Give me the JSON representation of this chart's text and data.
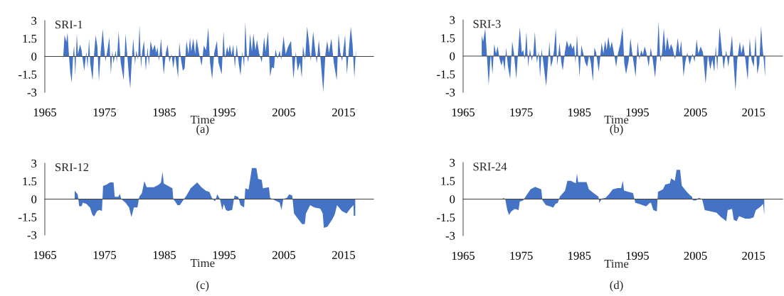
{
  "chart_data": [
    {
      "type": "area",
      "title": "SRI-1",
      "xlabel": "Time",
      "annotations": [
        "(a)"
      ],
      "color": "#4472c4",
      "xlim": [
        1965,
        2020
      ],
      "xticks": [
        1965,
        1975,
        1985,
        1995,
        2005,
        2015
      ],
      "ylim": [
        -3,
        3
      ],
      "yticks": [
        -3,
        -1.5,
        0,
        1.5,
        3
      ],
      "x": [
        1968.05,
        1968.3,
        1968.6,
        1968.8,
        1969.05,
        1969.25,
        1969.5,
        1969.75,
        1969.9,
        1970.1,
        1970.35,
        1970.55,
        1970.9,
        1971.15,
        1971.35,
        1971.6,
        1971.95,
        1972.15,
        1972.4,
        1972.6,
        1973.0,
        1973.25,
        1973.5,
        1973.8,
        1974.05,
        1974.35,
        1974.7,
        1974.9,
        1975.15,
        1975.5,
        1975.8,
        1976.05,
        1976.3,
        1976.5,
        1976.85,
        1977.05,
        1977.35,
        1977.7,
        1978.2,
        1978.5,
        1978.8,
        1979.05,
        1979.3,
        1979.5,
        1979.8,
        1980.1,
        1980.3,
        1980.6,
        1980.85,
        1981.1,
        1981.3,
        1981.6,
        1981.9,
        1982.2,
        1982.4,
        1982.7,
        1983.05,
        1983.4,
        1983.65,
        1983.85,
        1984.1,
        1984.45,
        1984.7,
        1984.9,
        1985.25,
        1985.55,
        1985.85,
        1986.2,
        1986.5,
        1986.8,
        1987.3,
        1987.5,
        1987.8,
        1988.1,
        1988.4,
        1988.7,
        1989.05,
        1989.3,
        1989.5,
        1989.85,
        1990.15,
        1990.4,
        1990.8,
        1991.25,
        1991.6,
        1992.0,
        1992.35,
        1992.65,
        1993.0,
        1993.35,
        1993.8,
        1994.05,
        1994.6,
        1994.9,
        1995.15,
        1995.5,
        1995.75,
        1995.95,
        1996.25,
        1996.55,
        1996.8,
        1997.1,
        1997.45,
        1997.75,
        1998.05,
        1998.35,
        1998.55,
        1998.8,
        1999.05,
        1999.35,
        1999.65,
        1999.9,
        2000.25,
        2000.5,
        2000.85,
        2001.3,
        2001.7,
        2001.95,
        2002.35,
        2002.7,
        2003.0,
        2003.35,
        2003.6,
        2003.95,
        2004.3,
        2004.55,
        2004.95,
        2005.3,
        2005.7,
        2006.2,
        2006.6,
        2007.0,
        2007.3,
        2007.7,
        2008.0,
        2008.2,
        2008.55,
        2008.9,
        2009.2,
        2009.5,
        2009.9,
        2010.25,
        2010.5,
        2010.85,
        2011.15,
        2011.6,
        2011.95,
        2012.25,
        2012.55,
        2012.95,
        2013.35,
        2013.85,
        2014.15,
        2014.45,
        2014.75,
        2015.25,
        2015.55,
        2015.9,
        2016.2,
        2016.5,
        2016.8,
        2017.05
      ],
      "values": [
        -0.3,
        1.8,
        1.2,
        2.0,
        0,
        -1.3,
        -2.2,
        0.2,
        0.9,
        -1.6,
        1.9,
        0.2,
        1.0,
        0.5,
        -0.3,
        -1.2,
        0.4,
        -1.0,
        1.5,
        -0.6,
        -2.0,
        0.2,
        1.8,
        0.8,
        -2.1,
        0.4,
        2.3,
        0.9,
        -0.4,
        0.6,
        1.6,
        -1.5,
        0.5,
        -0.6,
        0.5,
        -0.5,
        2.1,
        -0.5,
        -2.0,
        1.9,
        0.1,
        -1.5,
        -2.7,
        -0.8,
        1.5,
        -0.7,
        0.5,
        -0.3,
        2.6,
        -1.0,
        0.4,
        1.3,
        -1.2,
        0.8,
        -0.8,
        1.3,
        0.5,
        1.0,
        0.3,
        0.8,
        -0.4,
        1.5,
        -0.3,
        -1.5,
        0.3,
        1.0,
        -0.5,
        0.2,
        -1.0,
        0.2,
        -1.8,
        1.2,
        -0.3,
        -1.2,
        -1.0,
        1.3,
        0.2,
        1.6,
        0.4,
        1.5,
        0.2,
        1.5,
        0.3,
        -0.8,
        0.9,
        0.5,
        2.4,
        -0.5,
        -1.9,
        0.3,
        1.3,
        -0.5,
        -1.5,
        2.1,
        -0.2,
        0.8,
        0.3,
        1.0,
        0.1,
        1.0,
        -1.0,
        1.0,
        -0.6,
        -1.6,
        0.4,
        -0.9,
        2.9,
        0.2,
        -0.5,
        1.9,
        0.4,
        1.9,
        0.5,
        1.4,
        0.3,
        -0.5,
        1.6,
        0.4,
        2.1,
        -1.7,
        -0.9,
        -1.0,
        0.6,
        -0.2,
        0.5,
        -0.3,
        1.7,
        0.2,
        0.8,
        1.3,
        -1.9,
        0.4,
        -1.2,
        -0.5,
        -1.8,
        0.9,
        -0.3,
        2.5,
        1.2,
        -0.4,
        2.1,
        0.5,
        -0.6,
        1.4,
        -0.3,
        -3.0,
        0.2,
        1.3,
        0.3,
        1.5,
        -0.5,
        -2.0,
        1.9,
        0.3,
        -0.4,
        1.8,
        -1.5,
        0.7,
        2.5,
        1.0,
        -1.8,
        0.6
      ]
    },
    {
      "type": "area",
      "title": "SRI-3",
      "xlabel": "Time",
      "annotations": [
        "(b)"
      ],
      "color": "#4472c4",
      "xlim": [
        1965,
        2020
      ],
      "xticks": [
        1965,
        1975,
        1985,
        1995,
        2005,
        2015
      ],
      "ylim": [
        -3,
        3
      ],
      "yticks": [
        -3,
        -1.5,
        0,
        1.5,
        3
      ],
      "x": [
        1968.2,
        1968.45,
        1968.8,
        1969.1,
        1969.4,
        1969.75,
        1970.05,
        1970.35,
        1970.65,
        1970.95,
        1971.25,
        1971.6,
        1971.85,
        1972.15,
        1972.4,
        1972.7,
        1973.1,
        1973.45,
        1973.75,
        1974.15,
        1974.45,
        1974.75,
        1975.1,
        1975.35,
        1975.6,
        1975.9,
        1976.2,
        1976.5,
        1976.8,
        1977.1,
        1977.35,
        1977.7,
        1978.0,
        1978.25,
        1978.5,
        1978.8,
        1979.3,
        1979.55,
        1979.85,
        1980.1,
        1980.4,
        1980.65,
        1980.95,
        1981.2,
        1981.6,
        1981.9,
        1982.15,
        1982.5,
        1982.85,
        1983.2,
        1983.5,
        1983.8,
        1984.1,
        1984.35,
        1984.6,
        1984.8,
        1985.05,
        1985.35,
        1985.65,
        1986.0,
        1986.35,
        1986.7,
        1987.0,
        1987.35,
        1987.6,
        1987.9,
        1988.35,
        1988.85,
        1989.15,
        1989.45,
        1989.7,
        1990.0,
        1990.3,
        1990.6,
        1990.95,
        1991.35,
        1991.65,
        1992.05,
        1992.45,
        1992.75,
        1993.05,
        1993.5,
        1993.8,
        1994.1,
        1994.7,
        1995.05,
        1995.35,
        1995.65,
        1995.95,
        1996.25,
        1996.55,
        1996.95,
        1997.3,
        1997.65,
        1998.05,
        1998.4,
        1998.65,
        1998.95,
        1999.25,
        1999.55,
        1999.85,
        2000.15,
        2000.5,
        2000.8,
        2001.1,
        2001.5,
        2001.95,
        2002.25,
        2002.55,
        2002.95,
        2003.25,
        2003.6,
        2004.0,
        2004.5,
        2004.85,
        2005.2,
        2005.5,
        2005.9,
        2006.3,
        2006.75,
        2007.15,
        2007.55,
        2007.9,
        2008.25,
        2008.5,
        2008.75,
        2009.15,
        2009.5,
        2009.85,
        2010.3,
        2010.65,
        2010.95,
        2011.3,
        2011.6,
        2011.9,
        2012.2,
        2012.65,
        2012.9,
        2013.25,
        2013.6,
        2014.0,
        2014.35,
        2014.65,
        2015.05,
        2015.35,
        2015.65,
        2016.0,
        2016.3,
        2016.5,
        2016.75,
        2017.0
      ],
      "values": [
        1.7,
        1.2,
        2.3,
        0,
        -2.4,
        0.2,
        -1.5,
        1.0,
        0.2,
        0.8,
        -0.2,
        -0.8,
        -0.3,
        -1.2,
        0.7,
        -0.8,
        -1.9,
        1.2,
        0.2,
        -1.9,
        0.3,
        2.4,
        0.3,
        0.5,
        -0.3,
        2.0,
        -0.9,
        0.6,
        -0.4,
        0.2,
        2.0,
        -0.6,
        0.4,
        -1.8,
        0.6,
        -0.5,
        -2.5,
        -1.0,
        1.2,
        -0.9,
        -0.4,
        0.5,
        2.3,
        -0.8,
        1.1,
        -0.5,
        -1.2,
        0.3,
        1.3,
        0.7,
        1.1,
        0.6,
        0.9,
        -0.6,
        1.8,
        0.1,
        -1.7,
        0.9,
        0.3,
        -0.5,
        -0.9,
        0.1,
        -0.6,
        -2.1,
        0.7,
        0.3,
        -1.3,
        1.1,
        0.2,
        1.3,
        0.5,
        1.6,
        0.6,
        1.2,
        0.3,
        -0.9,
        0.2,
        1.0,
        2.4,
        -0.6,
        -1.5,
        -0.4,
        1.5,
        0.3,
        -1.7,
        1.2,
        -0.3,
        0.5,
        0.1,
        0.8,
        0.3,
        -0.9,
        0.7,
        -0.3,
        -1.8,
        0.2,
        2.9,
        -0.5,
        0.3,
        2.3,
        0.4,
        1.6,
        0.5,
        1.0,
        0.6,
        -0.3,
        1.5,
        0.2,
        1.3,
        -1.7,
        -0.5,
        0.3,
        -0.7,
        0.2,
        -0.5,
        1.4,
        0.2,
        0.8,
        0.3,
        -2.3,
        0.1,
        -1.1,
        -0.3,
        -1.3,
        0.9,
        -1.2,
        2.4,
        0.7,
        -1.1,
        0.5,
        -0.9,
        0.2,
        1.7,
        -0.8,
        -2.9,
        -0.3,
        1.2,
        0.2,
        1.0,
        -0.3,
        -2.0,
        1.5,
        -0.3,
        -0.9,
        1.7,
        -1.5,
        -0.6,
        2.5,
        1.0,
        -0.3,
        -1.7
      ]
    },
    {
      "type": "area",
      "title": "SRI-12",
      "xlabel": "Time",
      "annotations": [
        "(c)"
      ],
      "color": "#4472c4",
      "xlim": [
        1965,
        2020
      ],
      "xticks": [
        1965,
        1975,
        1985,
        1995,
        2005,
        2015
      ],
      "ylim": [
        -3,
        3
      ],
      "yticks": [
        -3,
        -1.5,
        0,
        1.5,
        3
      ],
      "x": [
        1970.0,
        1970.5,
        1970.75,
        1971.15,
        1971.35,
        1971.95,
        1972.55,
        1972.95,
        1973.25,
        1973.75,
        1974.15,
        1974.55,
        1974.65,
        1974.75,
        1975.3,
        1975.9,
        1976.5,
        1976.7,
        1977.3,
        1977.55,
        1977.8,
        1978.5,
        1979.1,
        1979.5,
        1979.9,
        1980.5,
        1980.8,
        1981.25,
        1981.65,
        1982.05,
        1983.25,
        1984.05,
        1984.45,
        1984.7,
        1984.9,
        1985.65,
        1986.35,
        1986.5,
        1986.8,
        1987.2,
        1987.6,
        1988.7,
        1989.4,
        1990.5,
        1991.2,
        1991.95,
        1992.55,
        1992.95,
        1993.5,
        1993.85,
        1994.3,
        1994.7,
        1994.95,
        1995.3,
        1995.65,
        1996.35,
        1996.75,
        1997.35,
        1997.75,
        1998.35,
        1998.55,
        1999.1,
        1999.65,
        2000.4,
        2000.7,
        2001.3,
        2001.5,
        2002.5,
        2002.7,
        2003.5,
        2004.3,
        2004.6,
        2004.9,
        2005.5,
        2005.9,
        2006.4,
        2006.7,
        2007.3,
        2008.05,
        2008.5,
        2008.7,
        2009.4,
        2010.1,
        2011.1,
        2011.5,
        2011.7,
        2012.3,
        2013.1,
        2013.5,
        2013.9,
        2014.7,
        2015.5,
        2016.1,
        2016.65,
        2016.7,
        2016.95
      ],
      "values": [
        0.7,
        0.4,
        -0.6,
        -0.6,
        -0.3,
        -0.4,
        -0.7,
        -1.3,
        -1.45,
        -1.0,
        -0.9,
        -1.0,
        0,
        1.1,
        1.2,
        1.4,
        1.4,
        0.2,
        0.2,
        0.45,
        0.0,
        -0.3,
        -0.7,
        -1.5,
        -0.7,
        -0.7,
        0.2,
        0.5,
        1.5,
        1.0,
        1.0,
        1.2,
        1.4,
        2.3,
        1.3,
        1.1,
        0.9,
        0.0,
        -0.2,
        -0.5,
        -0.5,
        0.3,
        0.9,
        1.4,
        1.0,
        0.7,
        0.6,
        0.1,
        -0.2,
        0.4,
        0.0,
        -0.9,
        -0.4,
        -0.9,
        -1.0,
        -0.9,
        0.3,
        0.2,
        -0.5,
        -0.7,
        0.9,
        0.8,
        2.6,
        2.6,
        1.7,
        1.6,
        0.9,
        1.0,
        0.1,
        -0.1,
        -0.3,
        -0.9,
        0.0,
        0.1,
        0.4,
        0.3,
        -1.2,
        -1.6,
        -2.1,
        -2.1,
        -1.2,
        -0.5,
        -0.7,
        -0.8,
        -1.2,
        -2.4,
        -2.3,
        -1.7,
        -1.3,
        -0.5,
        -1.0,
        -1.2,
        -0.8,
        -0.5,
        -1.4,
        -1.4
      ]
    },
    {
      "type": "area",
      "title": "SRI-24",
      "xlabel": "Time",
      "annotations": [
        "(d)"
      ],
      "color": "#4472c4",
      "xlim": [
        1965,
        2020
      ],
      "xticks": [
        1965,
        1975,
        1985,
        1995,
        2005,
        2015
      ],
      "ylim": [
        -3,
        3
      ],
      "yticks": [
        -3,
        -1.5,
        0,
        1.5,
        3
      ],
      "x": [
        1971.85,
        1972.25,
        1972.6,
        1972.9,
        1973.3,
        1973.9,
        1974.55,
        1974.75,
        1975.35,
        1975.75,
        1976.6,
        1977.4,
        1978.45,
        1978.65,
        1979.25,
        1980.0,
        1980.5,
        1980.9,
        1981.3,
        1981.65,
        1982.55,
        1982.95,
        1983.55,
        1984.4,
        1984.6,
        1984.8,
        1986.25,
        1986.65,
        1987.45,
        1988.3,
        1988.45,
        1988.9,
        1989.5,
        1990.1,
        1990.75,
        1991.6,
        1992.2,
        1992.5,
        1992.7,
        1993.45,
        1994.25,
        1994.65,
        1995.3,
        1995.9,
        1996.5,
        1997.15,
        1997.35,
        1997.75,
        1998.35,
        1998.55,
        1999.4,
        1999.8,
        2000.6,
        2000.8,
        2001.45,
        2001.75,
        2002.35,
        2002.65,
        2003.5,
        2004.1,
        2004.4,
        2004.55,
        2005.15,
        2005.55,
        2006.15,
        2006.6,
        2007.6,
        2008.6,
        2009.45,
        2010.3,
        2010.55,
        2011.3,
        2011.6,
        2012.1,
        2012.5,
        2013.55,
        2014.35,
        2015.0,
        2015.4,
        2016.25,
        2016.65,
        2016.85
      ],
      "values": [
        0.1,
        0.0,
        -0.9,
        -1.3,
        -1.0,
        -0.8,
        -0.9,
        -0.2,
        -0.1,
        0.2,
        0.8,
        1.0,
        0.8,
        -0.1,
        -0.5,
        -0.6,
        -0.7,
        -0.4,
        -0.3,
        0.2,
        0.7,
        1.5,
        1.5,
        1.3,
        2.1,
        1.4,
        1.4,
        0.8,
        0.5,
        0.2,
        -0.3,
        0.05,
        0.1,
        0.4,
        0.8,
        0.9,
        0.9,
        1.5,
        0.7,
        0.6,
        0.5,
        -0.3,
        -0.4,
        -0.5,
        -0.6,
        -0.3,
        -0.3,
        -0.9,
        -1.0,
        0.6,
        0.8,
        1.2,
        1.3,
        1.7,
        1.5,
        2.4,
        2.4,
        1.1,
        0.6,
        0.3,
        0.2,
        -0.1,
        -0.1,
        0.1,
        0.0,
        -0.9,
        -1.0,
        -1.1,
        -1.5,
        -1.8,
        -0.9,
        -0.8,
        -1.7,
        -1.8,
        -1.4,
        -1.6,
        -1.6,
        -1.5,
        -0.9,
        -0.6,
        -0.4,
        -1.3
      ]
    }
  ]
}
